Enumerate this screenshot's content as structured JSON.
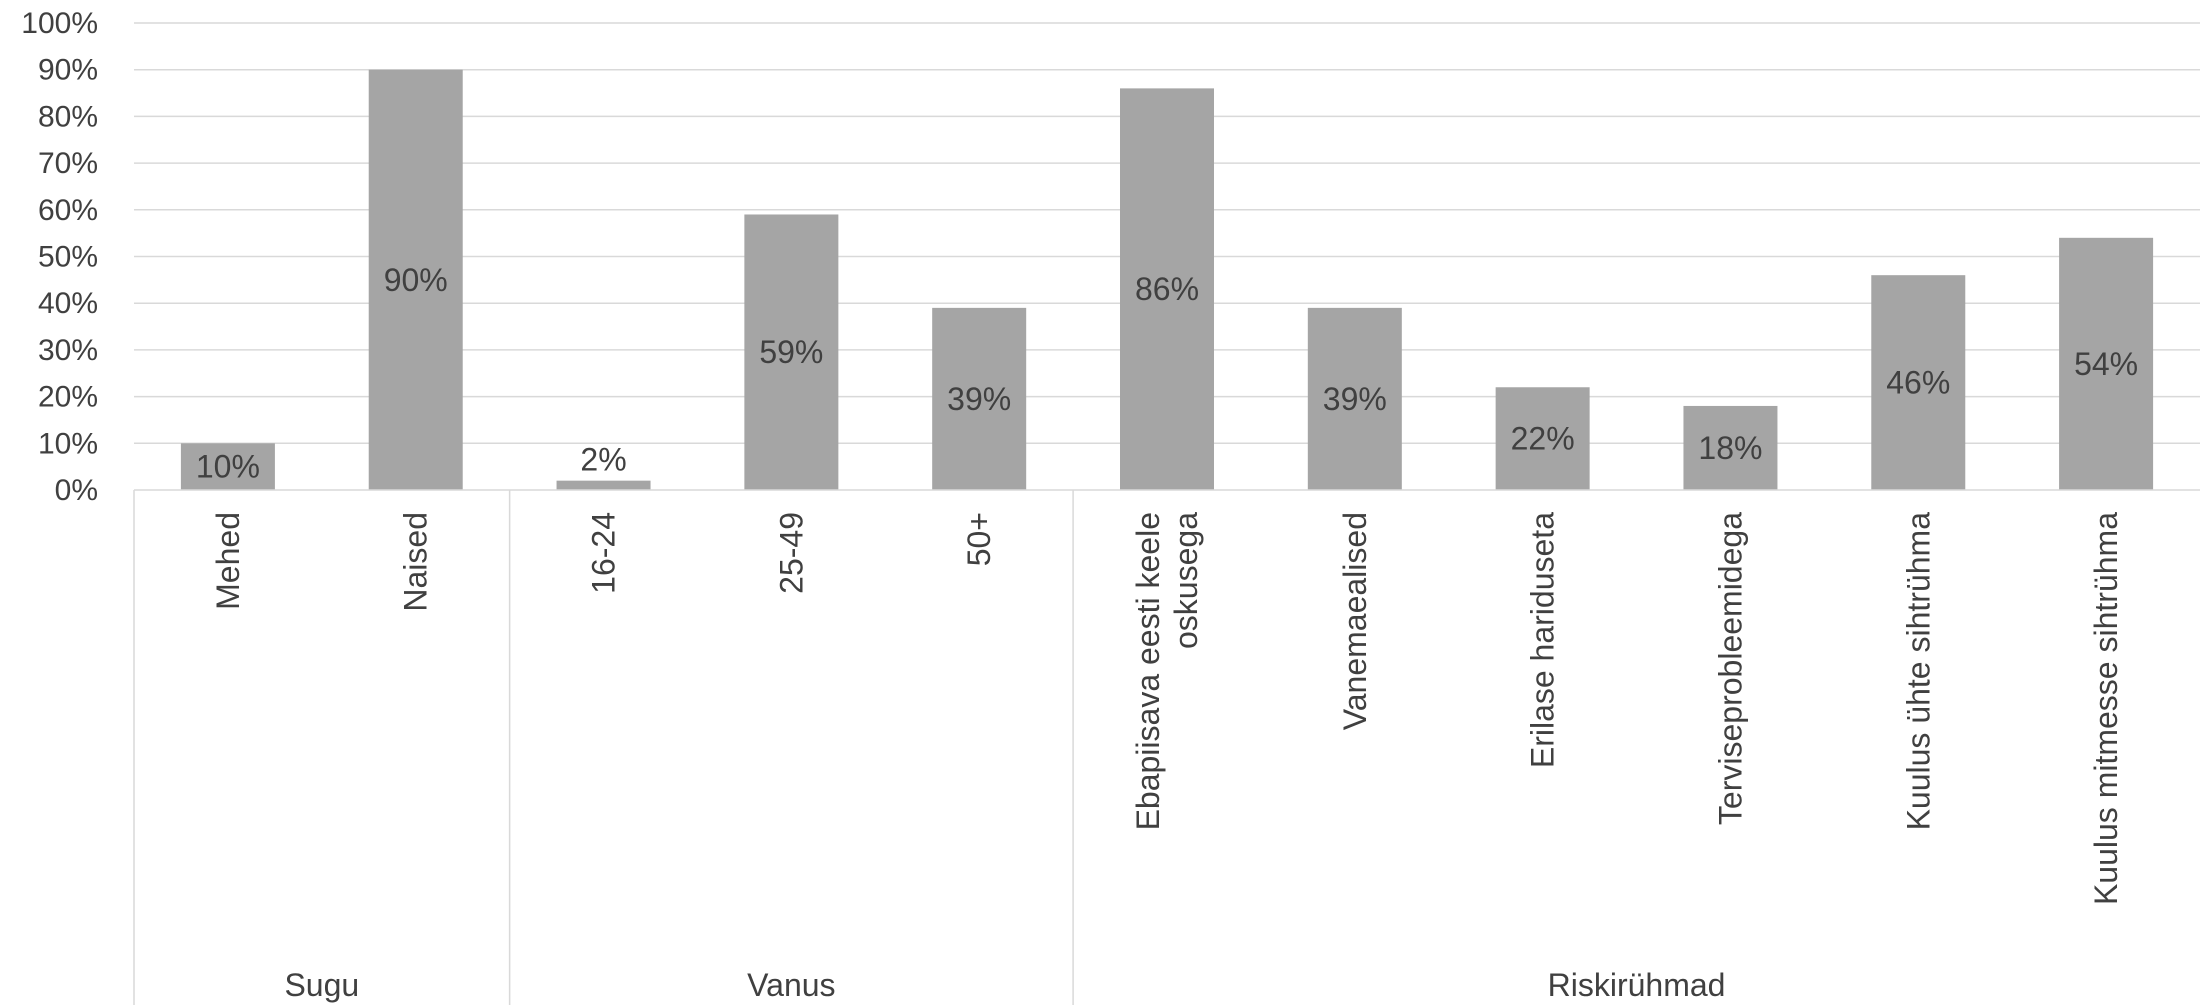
{
  "chart_data": {
    "type": "bar",
    "title": "",
    "xlabel": "",
    "ylabel": "",
    "ylim": [
      0,
      100
    ],
    "yticks": [
      "0%",
      "10%",
      "20%",
      "30%",
      "40%",
      "50%",
      "60%",
      "70%",
      "80%",
      "90%",
      "100%"
    ],
    "grid": true,
    "legend": "none",
    "bar_color": "#a5a5a5",
    "categories": [
      "Mehed",
      "Naised",
      "16-24",
      "25-49",
      "50+",
      "Ebapiisava eesti keele oskusega",
      "Vanemaealised",
      "Erilase hariduseta",
      "Terviseprobleemidega",
      "Kuulus ühte sihtrühma",
      "Kuulus mitmesse sihtrühma"
    ],
    "category_lines": [
      [
        "Mehed"
      ],
      [
        "Naised"
      ],
      [
        "16-24"
      ],
      [
        "25-49"
      ],
      [
        "50+"
      ],
      [
        "Ebapiisava eesti keele",
        "oskusega"
      ],
      [
        "Vanemaealised"
      ],
      [
        "Erilase hariduseta"
      ],
      [
        "Terviseprobleemidega"
      ],
      [
        "Kuulus ühte sihtrühma"
      ],
      [
        "Kuulus mitmesse sihtrühma"
      ]
    ],
    "values": [
      10,
      90,
      2,
      59,
      39,
      86,
      39,
      22,
      18,
      46,
      54
    ],
    "data_labels": [
      "10%",
      "90%",
      "2%",
      "59%",
      "39%",
      "86%",
      "39%",
      "22%",
      "18%",
      "46%",
      "54%"
    ],
    "groups": [
      {
        "name": "Sugu",
        "count": 2
      },
      {
        "name": "Vanus",
        "count": 3
      },
      {
        "name": "Riskirühmad",
        "count": 6
      }
    ]
  }
}
